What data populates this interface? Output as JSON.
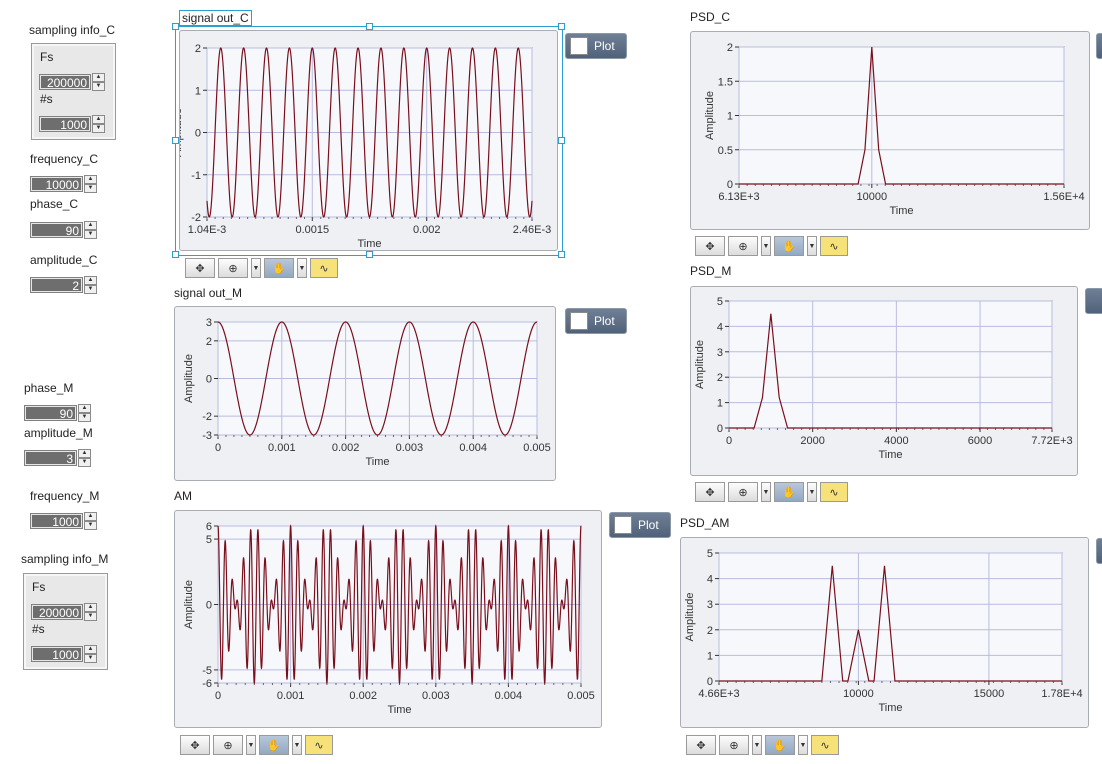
{
  "controls": {
    "sampling_info_c": {
      "label": "sampling info_C",
      "fs_label": "Fs",
      "fs_value": "200000",
      "ns_label": "#s",
      "ns_value": "1000"
    },
    "frequency_c": {
      "label": "frequency_C",
      "value": "10000"
    },
    "phase_c": {
      "label": "phase_C",
      "value": "90"
    },
    "amplitude_c": {
      "label": "amplitude_C",
      "value": "2"
    },
    "phase_m": {
      "label": "phase_M",
      "value": "90"
    },
    "amplitude_m": {
      "label": "amplitude_M",
      "value": "3"
    },
    "frequency_m": {
      "label": "frequency_M",
      "value": "1000"
    },
    "sampling_info_m": {
      "label": "sampling info_M",
      "fs_label": "Fs",
      "fs_value": "200000",
      "ns_label": "#s",
      "ns_value": "1000"
    }
  },
  "plot_button_label": "Plot",
  "colors": {
    "trace": "#7a0f1c",
    "grid": "#b9bce0",
    "plot_bg": "#f7f8fb",
    "frame": "#eef0f3"
  },
  "graphs": {
    "signal_out_c": {
      "title": "signal out_C",
      "xlabel": "Time",
      "ylabel": "Amplitude",
      "xticks": [
        "1.04E-3",
        "0.0015",
        "0.002",
        "2.46E-3"
      ],
      "yticks": [
        "2",
        "1",
        "0",
        "-1",
        "-2"
      ]
    },
    "signal_out_m": {
      "title": "signal out_M",
      "xlabel": "Time",
      "ylabel": "Amplitude",
      "xticks": [
        "0",
        "0.001",
        "0.002",
        "0.003",
        "0.004",
        "0.005"
      ],
      "yticks": [
        "3",
        "2",
        "0",
        "-2",
        "-3"
      ]
    },
    "am": {
      "title": "AM",
      "xlabel": "Time",
      "ylabel": "Amplitude",
      "xticks": [
        "0",
        "0.001",
        "0.002",
        "0.003",
        "0.004",
        "0.005"
      ],
      "yticks": [
        "6",
        "5",
        "0",
        "-5",
        "-6"
      ]
    },
    "psd_c": {
      "title": "PSD_C",
      "xlabel": "Time",
      "ylabel": "Amplitude",
      "xticks": [
        "6.13E+3",
        "10000",
        "1.56E+4"
      ],
      "yticks": [
        "2",
        "1.5",
        "1",
        "0.5",
        "0"
      ]
    },
    "psd_m": {
      "title": "PSD_M",
      "xlabel": "Time",
      "ylabel": "Amplitude",
      "xticks": [
        "0",
        "2000",
        "4000",
        "6000",
        "7.72E+3"
      ],
      "yticks": [
        "5",
        "4",
        "3",
        "2",
        "1",
        "0"
      ]
    },
    "psd_am": {
      "title": "PSD_AM",
      "xlabel": "Time",
      "ylabel": "Amplitude",
      "xticks": [
        "4.66E+3",
        "10000",
        "15000",
        "1.78E+4"
      ],
      "yticks": [
        "5",
        "4",
        "3",
        "2",
        "1",
        "0"
      ]
    }
  },
  "chart_data": [
    {
      "type": "line",
      "title": "signal out_C",
      "xlabel": "Time",
      "ylabel": "Amplitude",
      "xlim": [
        0.00104,
        0.00246
      ],
      "ylim": [
        -2,
        2
      ],
      "series": [
        {
          "signal": "sine",
          "amplitude": 2,
          "frequency": 10000,
          "phase_deg": 90
        }
      ]
    },
    {
      "type": "line",
      "title": "signal out_M",
      "xlabel": "Time",
      "ylabel": "Amplitude",
      "xlim": [
        0,
        0.005
      ],
      "ylim": [
        -3,
        3
      ],
      "series": [
        {
          "signal": "sine",
          "amplitude": 3,
          "frequency": 1000,
          "phase_deg": 90
        }
      ]
    },
    {
      "type": "line",
      "title": "AM",
      "xlabel": "Time",
      "ylabel": "Amplitude",
      "xlim": [
        0,
        0.005
      ],
      "ylim": [
        -6,
        6
      ],
      "series": [
        {
          "signal": "carrier x modulator",
          "carrier_frequency": 10000,
          "modulator_frequency": 1000
        }
      ]
    },
    {
      "type": "line",
      "title": "PSD_C",
      "xlabel": "Time",
      "ylabel": "Amplitude",
      "xlim": [
        6130,
        15600
      ],
      "ylim": [
        0,
        2
      ],
      "series": [
        {
          "values": [
            {
              "x": 6130,
              "y": 0
            },
            {
              "x": 9600,
              "y": 0
            },
            {
              "x": 9800,
              "y": 0.5
            },
            {
              "x": 10000,
              "y": 2
            },
            {
              "x": 10200,
              "y": 0.5
            },
            {
              "x": 10400,
              "y": 0
            },
            {
              "x": 15600,
              "y": 0
            }
          ]
        }
      ]
    },
    {
      "type": "line",
      "title": "PSD_M",
      "xlabel": "Time",
      "ylabel": "Amplitude",
      "xlim": [
        0,
        7720
      ],
      "ylim": [
        0,
        5
      ],
      "series": [
        {
          "values": [
            {
              "x": 0,
              "y": 0
            },
            {
              "x": 600,
              "y": 0
            },
            {
              "x": 800,
              "y": 1.2
            },
            {
              "x": 1000,
              "y": 4.5
            },
            {
              "x": 1200,
              "y": 1.2
            },
            {
              "x": 1400,
              "y": 0
            },
            {
              "x": 7720,
              "y": 0
            }
          ]
        }
      ]
    },
    {
      "type": "line",
      "title": "PSD_AM",
      "xlabel": "Time",
      "ylabel": "Amplitude",
      "xlim": [
        4660,
        17800
      ],
      "ylim": [
        0,
        5
      ],
      "series": [
        {
          "values": [
            {
              "x": 4660,
              "y": 0
            },
            {
              "x": 8600,
              "y": 0
            },
            {
              "x": 9000,
              "y": 4.5
            },
            {
              "x": 9400,
              "y": 0
            },
            {
              "x": 9600,
              "y": 0
            },
            {
              "x": 10000,
              "y": 2
            },
            {
              "x": 10400,
              "y": 0
            },
            {
              "x": 10600,
              "y": 0
            },
            {
              "x": 11000,
              "y": 4.5
            },
            {
              "x": 11400,
              "y": 0
            },
            {
              "x": 17800,
              "y": 0
            }
          ]
        }
      ]
    }
  ]
}
